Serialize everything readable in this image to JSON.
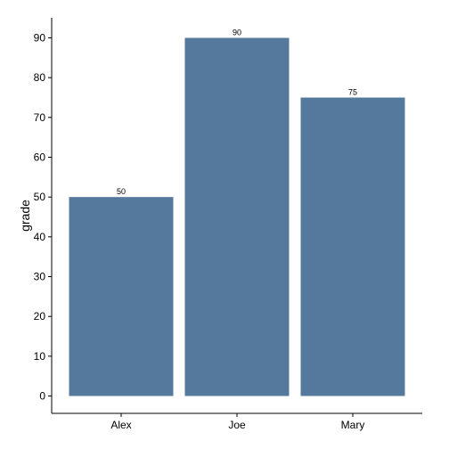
{
  "chart_data": {
    "type": "bar",
    "title": "",
    "xlabel": "",
    "ylabel": "grade",
    "categories": [
      "Alex",
      "Joe",
      "Mary"
    ],
    "values": [
      50,
      90,
      75
    ],
    "data_labels": [
      "50",
      "90",
      "75"
    ],
    "ylim": [
      0,
      95
    ],
    "yticks": [
      0,
      10,
      20,
      30,
      40,
      50,
      60,
      70,
      80,
      90
    ],
    "bar_color": "#54799C",
    "grid": false,
    "legend": "none"
  }
}
